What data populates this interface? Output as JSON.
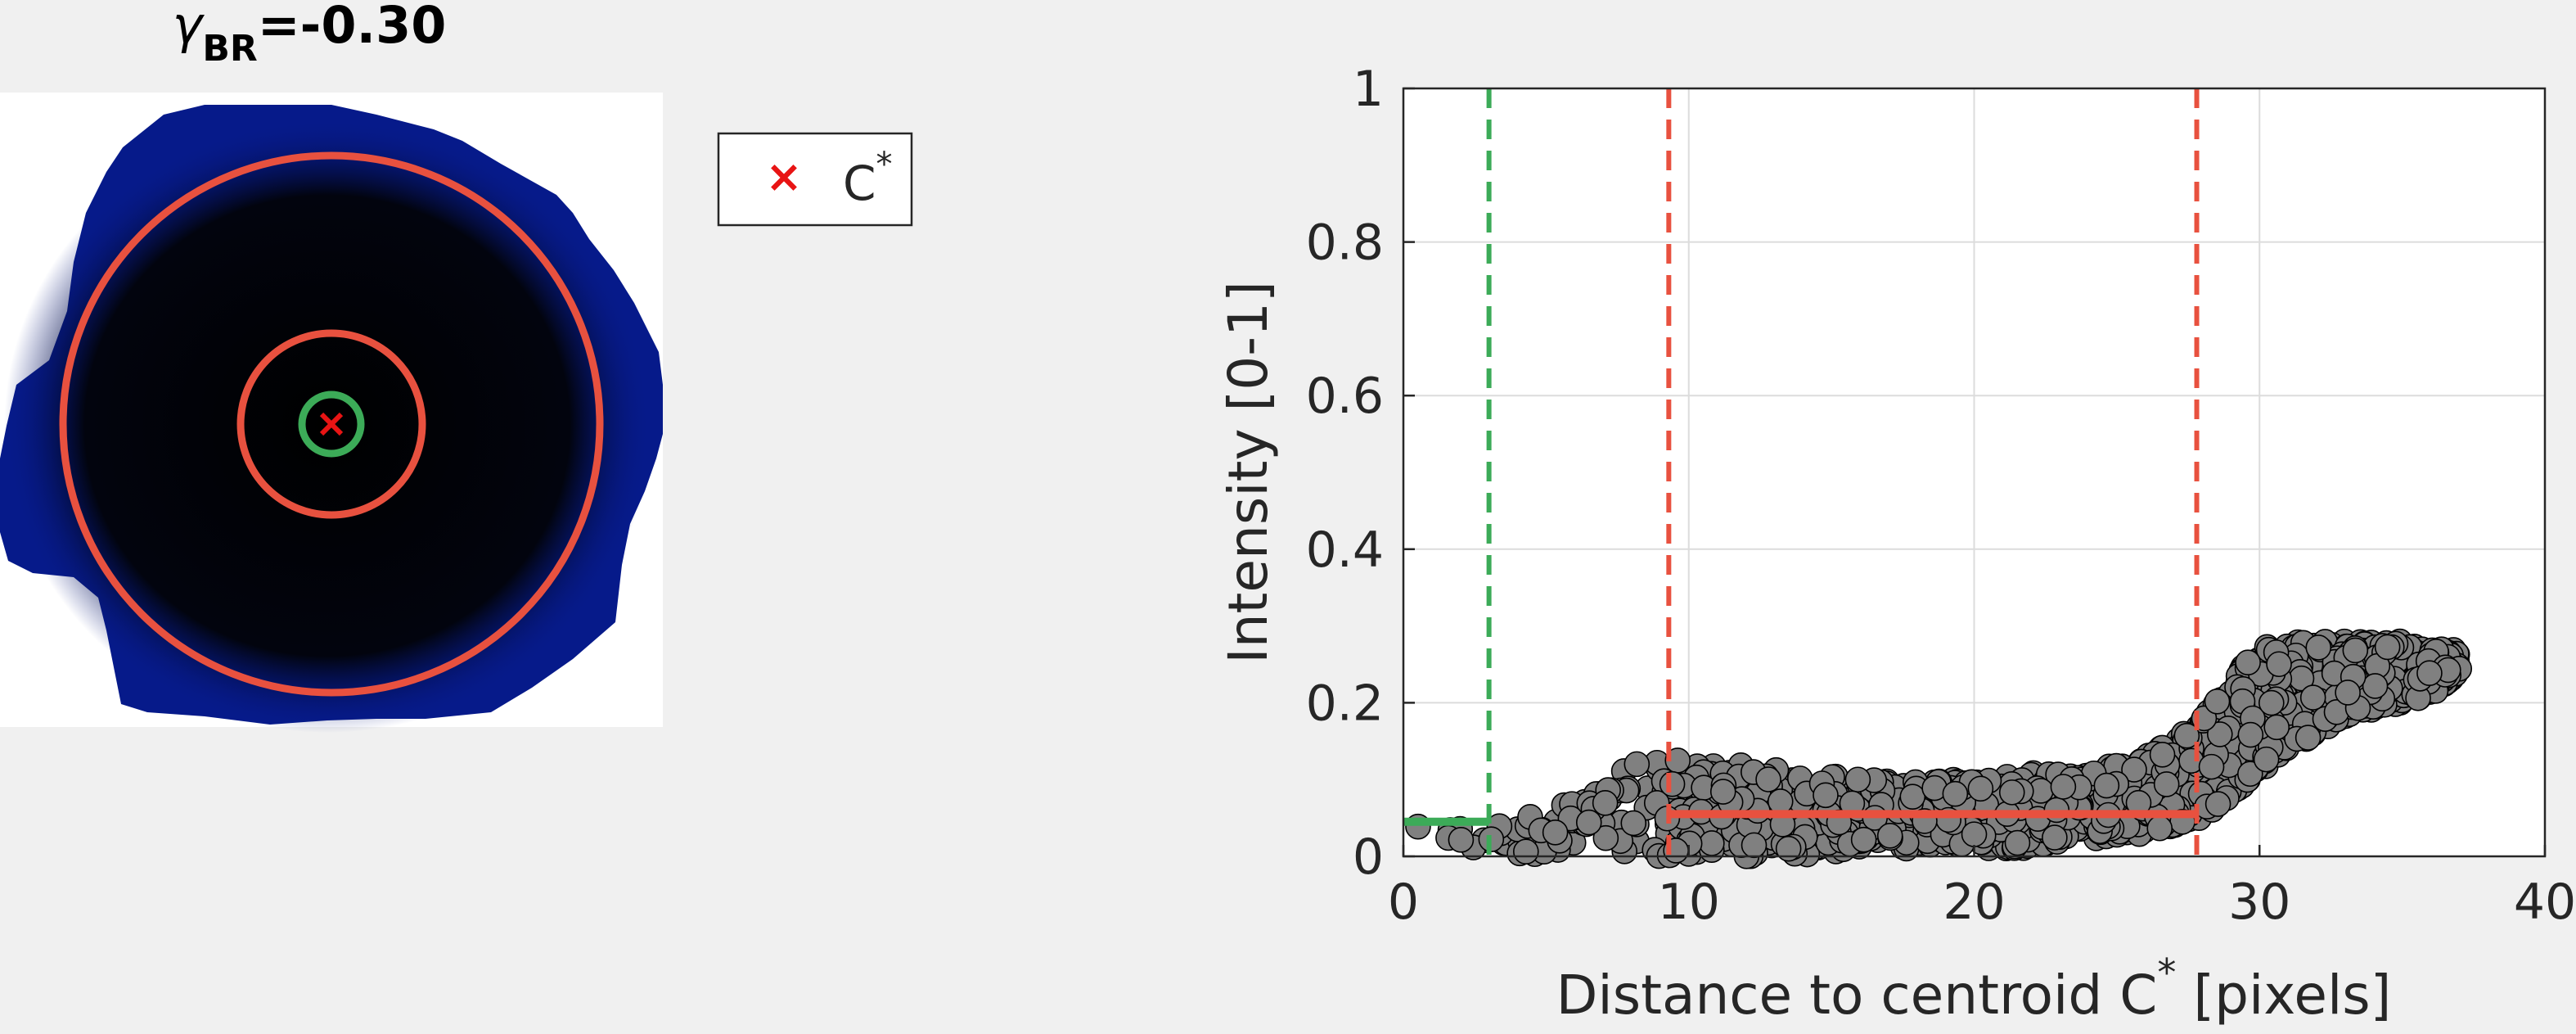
{
  "left_panel": {
    "title_symbol": "γ",
    "title_subscript": "BR",
    "title_value": "=-0.30",
    "legend_marker": "×",
    "legend_label": "C",
    "legend_superscript": "*",
    "colors": {
      "blob": "#061a8a",
      "blob_core": "#000000",
      "outer_rings": "#e8513f",
      "inner_ring": "#3cab58",
      "centroid_marker": "#e81414"
    }
  },
  "chart_data": {
    "type": "scatter",
    "xlabel_main": "Distance to centroid C",
    "xlabel_superscript": "*",
    "xlabel_suffix": " [pixels]",
    "ylabel": "Intensity [0-1]",
    "xlim": [
      0,
      40
    ],
    "ylim": [
      0,
      1
    ],
    "xticks": [
      0,
      10,
      20,
      30,
      40
    ],
    "yticks": [
      0,
      0.2,
      0.4,
      0.6,
      0.8,
      1
    ],
    "ytick_labels": [
      "0",
      "0.2",
      "0.4",
      "0.6",
      "0.8",
      "1"
    ],
    "grid": true,
    "envelope": [
      [
        0,
        0.03,
        0.06
      ],
      [
        1,
        0.02,
        0.05
      ],
      [
        2,
        0.02,
        0.05
      ],
      [
        3,
        0.0,
        0.05
      ],
      [
        4,
        0.0,
        0.06
      ],
      [
        5,
        0.0,
        0.07
      ],
      [
        6,
        0.0,
        0.08
      ],
      [
        7,
        0.0,
        0.09
      ],
      [
        8,
        0.0,
        0.12
      ],
      [
        9,
        0.0,
        0.13
      ],
      [
        10,
        0.0,
        0.13
      ],
      [
        12,
        0.0,
        0.12
      ],
      [
        14,
        0.0,
        0.11
      ],
      [
        16,
        0.01,
        0.1
      ],
      [
        18,
        0.01,
        0.1
      ],
      [
        20,
        0.01,
        0.1
      ],
      [
        22,
        0.01,
        0.11
      ],
      [
        24,
        0.02,
        0.11
      ],
      [
        26,
        0.03,
        0.13
      ],
      [
        27,
        0.04,
        0.15
      ],
      [
        28,
        0.05,
        0.18
      ],
      [
        29,
        0.08,
        0.23
      ],
      [
        30,
        0.11,
        0.27
      ],
      [
        31,
        0.14,
        0.28
      ],
      [
        32,
        0.16,
        0.28
      ],
      [
        33,
        0.18,
        0.28
      ],
      [
        34,
        0.19,
        0.28
      ],
      [
        35,
        0.2,
        0.28
      ],
      [
        36,
        0.21,
        0.27
      ],
      [
        37,
        0.24,
        0.27
      ]
    ],
    "marker_color": "#808080",
    "green_vline_x": 3,
    "red_vlines_x": [
      9.3,
      27.8
    ],
    "green_segment": {
      "x": [
        0,
        3
      ],
      "y": 0.045
    },
    "red_segment": {
      "x": [
        9.3,
        27.8
      ],
      "y": 0.055
    },
    "colors": {
      "green": "#3cab58",
      "red": "#e8513f"
    }
  }
}
